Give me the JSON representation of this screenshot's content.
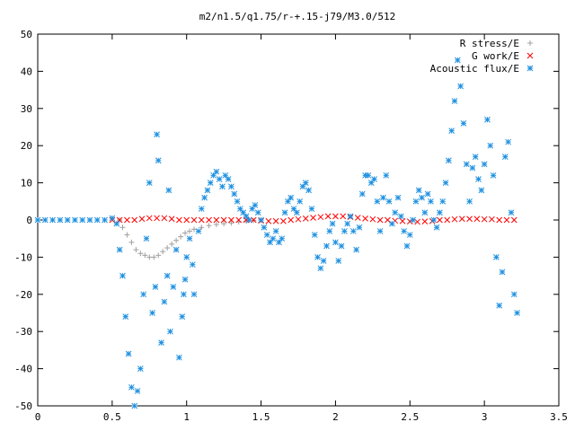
{
  "chart_data": {
    "type": "scatter",
    "title": "m2/n1.5/q1.75/r-+.15-j79/M3.0/512",
    "xlabel": "",
    "ylabel": "",
    "xlim": [
      0,
      3.5
    ],
    "ylim": [
      -50,
      50
    ],
    "xticks": [
      "0",
      "0.5",
      "1",
      "1.5",
      "2",
      "2.5",
      "3",
      "3.5"
    ],
    "yticks": [
      "50",
      "40",
      "30",
      "20",
      "10",
      "0",
      "-10",
      "-20",
      "-30",
      "-40",
      "-50"
    ],
    "legend_position": "top-right",
    "grid": false,
    "series": [
      {
        "name": "R stress/E",
        "marker": "plus",
        "color": "#a0a0a0",
        "points": [
          [
            0.55,
            0
          ],
          [
            0.57,
            -2
          ],
          [
            0.6,
            -4
          ],
          [
            0.63,
            -6
          ],
          [
            0.66,
            -8
          ],
          [
            0.69,
            -9
          ],
          [
            0.72,
            -9.5
          ],
          [
            0.75,
            -10
          ],
          [
            0.78,
            -10
          ],
          [
            0.81,
            -9.5
          ],
          [
            0.84,
            -8.5
          ],
          [
            0.87,
            -7.5
          ],
          [
            0.9,
            -6.5
          ],
          [
            0.93,
            -5.5
          ],
          [
            0.96,
            -4.5
          ],
          [
            0.99,
            -3.5
          ],
          [
            1.02,
            -3
          ],
          [
            1.05,
            -2.5
          ],
          [
            1.1,
            -2
          ],
          [
            1.15,
            -1.5
          ],
          [
            1.2,
            -1.2
          ],
          [
            1.25,
            -1
          ],
          [
            1.3,
            -0.8
          ],
          [
            1.35,
            -0.5
          ],
          [
            1.4,
            -0.3
          ],
          [
            1.45,
            -0.1
          ]
        ]
      },
      {
        "name": "G work/E",
        "marker": "cross",
        "color": "#ff0000",
        "points": [
          [
            0.5,
            0
          ],
          [
            0.55,
            0
          ],
          [
            0.6,
            0
          ],
          [
            0.65,
            0
          ],
          [
            0.7,
            0.3
          ],
          [
            0.75,
            0.5
          ],
          [
            0.8,
            0.5
          ],
          [
            0.85,
            0.5
          ],
          [
            0.9,
            0.3
          ],
          [
            0.95,
            0
          ],
          [
            1.0,
            0
          ],
          [
            1.05,
            0
          ],
          [
            1.1,
            0
          ],
          [
            1.15,
            0
          ],
          [
            1.2,
            0
          ],
          [
            1.25,
            0
          ],
          [
            1.3,
            0
          ],
          [
            1.35,
            0
          ],
          [
            1.4,
            0
          ],
          [
            1.45,
            0
          ],
          [
            1.5,
            -0.2
          ],
          [
            1.55,
            -0.3
          ],
          [
            1.6,
            -0.3
          ],
          [
            1.65,
            -0.3
          ],
          [
            1.7,
            0
          ],
          [
            1.75,
            0.2
          ],
          [
            1.8,
            0.4
          ],
          [
            1.85,
            0.6
          ],
          [
            1.9,
            0.8
          ],
          [
            1.95,
            1
          ],
          [
            2.0,
            1
          ],
          [
            2.05,
            1
          ],
          [
            2.1,
            0.8
          ],
          [
            2.15,
            0.6
          ],
          [
            2.2,
            0.4
          ],
          [
            2.25,
            0.2
          ],
          [
            2.3,
            0
          ],
          [
            2.35,
            0
          ],
          [
            2.4,
            -0.2
          ],
          [
            2.45,
            -0.3
          ],
          [
            2.5,
            -0.4
          ],
          [
            2.55,
            -0.5
          ],
          [
            2.6,
            -0.4
          ],
          [
            2.65,
            -0.3
          ],
          [
            2.7,
            0
          ],
          [
            2.75,
            0
          ],
          [
            2.8,
            0.2
          ],
          [
            2.85,
            0.3
          ],
          [
            2.9,
            0.3
          ],
          [
            2.95,
            0.3
          ],
          [
            3.0,
            0.2
          ],
          [
            3.05,
            0.2
          ],
          [
            3.1,
            0
          ],
          [
            3.15,
            0
          ],
          [
            3.2,
            0
          ]
        ]
      },
      {
        "name": "Acoustic flux/E",
        "marker": "star",
        "color": "#1e90e0",
        "points": [
          [
            0.0,
            0
          ],
          [
            0.05,
            0
          ],
          [
            0.1,
            0
          ],
          [
            0.15,
            0
          ],
          [
            0.2,
            0
          ],
          [
            0.25,
            0
          ],
          [
            0.3,
            0
          ],
          [
            0.35,
            0
          ],
          [
            0.4,
            0
          ],
          [
            0.45,
            0
          ],
          [
            0.5,
            0.5
          ],
          [
            0.53,
            -1
          ],
          [
            0.55,
            -8
          ],
          [
            0.57,
            -15
          ],
          [
            0.59,
            -26
          ],
          [
            0.61,
            -36
          ],
          [
            0.63,
            -45
          ],
          [
            0.65,
            -50
          ],
          [
            0.67,
            -46
          ],
          [
            0.69,
            -40
          ],
          [
            0.71,
            -20
          ],
          [
            0.73,
            -5
          ],
          [
            0.75,
            10
          ],
          [
            0.77,
            -25
          ],
          [
            0.79,
            -18
          ],
          [
            0.8,
            23
          ],
          [
            0.81,
            16
          ],
          [
            0.83,
            -33
          ],
          [
            0.85,
            -22
          ],
          [
            0.87,
            -15
          ],
          [
            0.88,
            8
          ],
          [
            0.89,
            -30
          ],
          [
            0.91,
            -18
          ],
          [
            0.93,
            -8
          ],
          [
            0.95,
            -37
          ],
          [
            0.97,
            -26
          ],
          [
            0.98,
            -20
          ],
          [
            0.99,
            -16
          ],
          [
            1.0,
            -10
          ],
          [
            1.02,
            -5
          ],
          [
            1.04,
            -12
          ],
          [
            1.05,
            -20
          ],
          [
            1.08,
            -3
          ],
          [
            1.1,
            3
          ],
          [
            1.12,
            6
          ],
          [
            1.14,
            8
          ],
          [
            1.16,
            10
          ],
          [
            1.18,
            12
          ],
          [
            1.2,
            13
          ],
          [
            1.22,
            11
          ],
          [
            1.24,
            9
          ],
          [
            1.26,
            12
          ],
          [
            1.28,
            11
          ],
          [
            1.3,
            9
          ],
          [
            1.32,
            7
          ],
          [
            1.34,
            5
          ],
          [
            1.36,
            3
          ],
          [
            1.38,
            2
          ],
          [
            1.4,
            1
          ],
          [
            1.42,
            0
          ],
          [
            1.44,
            3
          ],
          [
            1.46,
            4
          ],
          [
            1.48,
            2
          ],
          [
            1.5,
            0
          ],
          [
            1.52,
            -2
          ],
          [
            1.54,
            -4
          ],
          [
            1.56,
            -6
          ],
          [
            1.58,
            -5
          ],
          [
            1.6,
            -3
          ],
          [
            1.62,
            -6
          ],
          [
            1.64,
            -5
          ],
          [
            1.66,
            2
          ],
          [
            1.68,
            5
          ],
          [
            1.7,
            6
          ],
          [
            1.72,
            3
          ],
          [
            1.74,
            2
          ],
          [
            1.76,
            5
          ],
          [
            1.78,
            9
          ],
          [
            1.8,
            10
          ],
          [
            1.82,
            8
          ],
          [
            1.84,
            3
          ],
          [
            1.86,
            -4
          ],
          [
            1.88,
            -10
          ],
          [
            1.9,
            -13
          ],
          [
            1.92,
            -11
          ],
          [
            1.94,
            -7
          ],
          [
            1.96,
            -3
          ],
          [
            1.98,
            -1
          ],
          [
            2.0,
            -6
          ],
          [
            2.02,
            -11
          ],
          [
            2.04,
            -7
          ],
          [
            2.06,
            -3
          ],
          [
            2.08,
            -1
          ],
          [
            2.1,
            1
          ],
          [
            2.12,
            -3
          ],
          [
            2.14,
            -8
          ],
          [
            2.16,
            -2
          ],
          [
            2.18,
            7
          ],
          [
            2.2,
            12
          ],
          [
            2.22,
            12
          ],
          [
            2.24,
            10
          ],
          [
            2.26,
            11
          ],
          [
            2.28,
            5
          ],
          [
            2.3,
            -3
          ],
          [
            2.32,
            6
          ],
          [
            2.34,
            12
          ],
          [
            2.36,
            5
          ],
          [
            2.38,
            -1
          ],
          [
            2.4,
            2
          ],
          [
            2.42,
            6
          ],
          [
            2.44,
            1
          ],
          [
            2.46,
            -3
          ],
          [
            2.48,
            -7
          ],
          [
            2.5,
            -4
          ],
          [
            2.52,
            0
          ],
          [
            2.54,
            5
          ],
          [
            2.56,
            8
          ],
          [
            2.58,
            6
          ],
          [
            2.6,
            2
          ],
          [
            2.62,
            7
          ],
          [
            2.64,
            5
          ],
          [
            2.66,
            0
          ],
          [
            2.68,
            -2
          ],
          [
            2.7,
            2
          ],
          [
            2.72,
            5
          ],
          [
            2.74,
            10
          ],
          [
            2.76,
            16
          ],
          [
            2.78,
            24
          ],
          [
            2.8,
            32
          ],
          [
            2.82,
            43
          ],
          [
            2.84,
            36
          ],
          [
            2.86,
            26
          ],
          [
            2.88,
            15
          ],
          [
            2.9,
            5
          ],
          [
            2.92,
            14
          ],
          [
            2.94,
            17
          ],
          [
            2.96,
            11
          ],
          [
            2.98,
            8
          ],
          [
            3.0,
            15
          ],
          [
            3.02,
            27
          ],
          [
            3.04,
            20
          ],
          [
            3.06,
            12
          ],
          [
            3.08,
            -10
          ],
          [
            3.1,
            -23
          ],
          [
            3.12,
            -14
          ],
          [
            3.14,
            17
          ],
          [
            3.16,
            21
          ],
          [
            3.18,
            2
          ],
          [
            3.2,
            -20
          ],
          [
            3.22,
            -25
          ]
        ]
      }
    ]
  }
}
